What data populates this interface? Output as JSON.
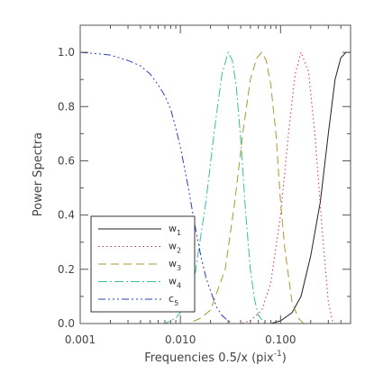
{
  "chart_data": {
    "type": "line",
    "title": "",
    "xlabel": "Frequencies 0.5/x (pix",
    "xlabel_sup": "-1",
    "xlabel_close": ")",
    "ylabel": "Power Spectra",
    "x_scale": "log",
    "xlim": [
      0.001,
      0.5
    ],
    "ylim": [
      0.0,
      1.1
    ],
    "grid": false,
    "legend_position": "bottom-left",
    "x_ticks": [
      {
        "value": 0.001,
        "label": "0.001"
      },
      {
        "value": 0.01,
        "label": "0.010"
      },
      {
        "value": 0.1,
        "label": "0.100"
      }
    ],
    "y_ticks": [
      {
        "value": 0.0,
        "label": "0.0"
      },
      {
        "value": 0.2,
        "label": "0.2"
      },
      {
        "value": 0.4,
        "label": "0.4"
      },
      {
        "value": 0.6,
        "label": "0.6"
      },
      {
        "value": 0.8,
        "label": "0.8"
      },
      {
        "value": 1.0,
        "label": "1.0"
      }
    ],
    "series": [
      {
        "name_base": "w",
        "name_sub": "1",
        "color": "#222222",
        "dash": "",
        "x": [
          0.001,
          0.08,
          0.1,
          0.13,
          0.16,
          0.2,
          0.25,
          0.3,
          0.35,
          0.4,
          0.45,
          0.5
        ],
        "y": [
          0.0,
          0.0,
          0.01,
          0.04,
          0.1,
          0.25,
          0.45,
          0.7,
          0.9,
          0.98,
          1.0,
          1.0
        ]
      },
      {
        "name_base": "w",
        "name_sub": "2",
        "color": "#d0305a",
        "dash": "1.5,3",
        "x": [
          0.001,
          0.04,
          0.05,
          0.065,
          0.08,
          0.1,
          0.12,
          0.14,
          0.16,
          0.19,
          0.22,
          0.26,
          0.3,
          0.33,
          0.35,
          0.5
        ],
        "y": [
          0.0,
          0.0,
          0.01,
          0.05,
          0.15,
          0.4,
          0.7,
          0.92,
          1.0,
          0.93,
          0.7,
          0.35,
          0.08,
          0.01,
          0.0,
          0.0
        ]
      },
      {
        "name_base": "w",
        "name_sub": "3",
        "color": "#a89a2e",
        "dash": "9,5",
        "x": [
          0.001,
          0.012,
          0.016,
          0.02,
          0.028,
          0.035,
          0.042,
          0.05,
          0.058,
          0.065,
          0.072,
          0.08,
          0.09,
          0.1,
          0.11,
          0.13,
          0.15,
          0.17,
          0.5
        ],
        "y": [
          0.0,
          0.0,
          0.02,
          0.05,
          0.2,
          0.45,
          0.7,
          0.9,
          0.98,
          1.0,
          0.97,
          0.88,
          0.7,
          0.45,
          0.28,
          0.08,
          0.02,
          0.0,
          0.0
        ]
      },
      {
        "name_base": "w",
        "name_sub": "4",
        "color": "#3cbf9a",
        "dash": "10,3,2,3",
        "x": [
          0.001,
          0.007,
          0.009,
          0.011,
          0.014,
          0.018,
          0.022,
          0.026,
          0.03,
          0.033,
          0.036,
          0.04,
          0.045,
          0.05,
          0.055,
          0.06,
          0.07,
          0.08,
          0.5
        ],
        "y": [
          0.0,
          0.0,
          0.02,
          0.06,
          0.18,
          0.45,
          0.72,
          0.92,
          1.0,
          0.97,
          0.88,
          0.68,
          0.4,
          0.2,
          0.09,
          0.03,
          0.0,
          0.0,
          0.0
        ]
      },
      {
        "name_base": "c",
        "name_sub": "5",
        "color": "#2a3fbf",
        "dash": "8,3,2,3,2,3,2,3",
        "x": [
          0.001,
          0.0015,
          0.002,
          0.003,
          0.004,
          0.005,
          0.006,
          0.007,
          0.008,
          0.009,
          0.01,
          0.012,
          0.014,
          0.016,
          0.018,
          0.02,
          0.023,
          0.026,
          0.03,
          0.033
        ],
        "y": [
          1.0,
          0.995,
          0.99,
          0.97,
          0.95,
          0.92,
          0.88,
          0.84,
          0.79,
          0.72,
          0.65,
          0.5,
          0.36,
          0.25,
          0.17,
          0.12,
          0.06,
          0.03,
          0.01,
          0.0
        ]
      }
    ]
  }
}
